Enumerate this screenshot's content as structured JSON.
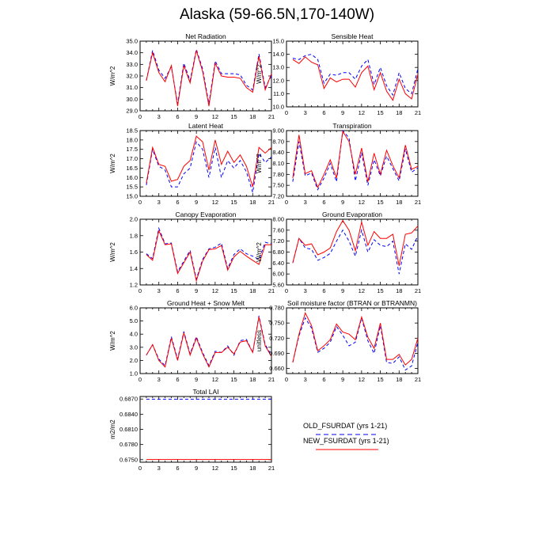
{
  "figure": {
    "title": "Alaska (59-66.5N,170-140W)",
    "legend": [
      {
        "label": "OLD_FSURDAT (yrs 1-21)",
        "color": "#0000ff",
        "dash": true
      },
      {
        "label": "NEW_FSURDAT (yrs 1-21)",
        "color": "#ff0000",
        "dash": false
      }
    ]
  },
  "chart_data": [
    {
      "type": "line",
      "title": "Net Radiation",
      "ylabel": "W/m^2",
      "x": [
        1,
        2,
        3,
        4,
        5,
        6,
        7,
        8,
        9,
        10,
        11,
        12,
        13,
        14,
        15,
        16,
        17,
        18,
        19,
        20,
        21
      ],
      "xlim": [
        0,
        21
      ],
      "xticks": [
        0,
        3,
        6,
        9,
        12,
        15,
        18,
        21
      ],
      "ylim": [
        29.0,
        35.0
      ],
      "yticks": [
        "29.0",
        "30.0",
        "31.0",
        "32.0",
        "33.0",
        "34.0",
        "35.0"
      ],
      "series": [
        {
          "name": "OLD_FSURDAT (yrs 1-21)",
          "color": "#0000ff",
          "dash": true,
          "values": [
            31.6,
            34.2,
            32.5,
            31.8,
            32.8,
            29.6,
            33.1,
            31.6,
            34.3,
            32.6,
            29.6,
            33.3,
            32.2,
            32.2,
            32.2,
            32.1,
            31.2,
            30.8,
            33.9,
            31.0,
            32.0
          ]
        },
        {
          "name": "NEW_FSURDAT (yrs 1-21)",
          "color": "#ff0000",
          "dash": false,
          "values": [
            31.6,
            34.0,
            32.3,
            31.5,
            32.9,
            29.4,
            32.9,
            31.4,
            34.2,
            32.4,
            29.4,
            33.1,
            32.0,
            31.9,
            31.9,
            31.8,
            31.0,
            30.6,
            33.7,
            30.8,
            32.2
          ]
        }
      ]
    },
    {
      "type": "line",
      "title": "Sensible Heat",
      "ylabel": "W/m^2",
      "x": [
        1,
        2,
        3,
        4,
        5,
        6,
        7,
        8,
        9,
        10,
        11,
        12,
        13,
        14,
        15,
        16,
        17,
        18,
        19,
        20,
        21
      ],
      "xlim": [
        0,
        21
      ],
      "xticks": [
        0,
        3,
        6,
        9,
        12,
        15,
        18,
        21
      ],
      "ylim": [
        10.0,
        15.0
      ],
      "yticks": [
        "10.0",
        "11.0",
        "12.0",
        "13.0",
        "14.0",
        "15.0"
      ],
      "series": [
        {
          "name": "OLD_FSURDAT (yrs 1-21)",
          "color": "#0000ff",
          "dash": true,
          "values": [
            13.7,
            13.6,
            13.9,
            14.0,
            13.6,
            11.8,
            12.5,
            12.4,
            12.6,
            12.6,
            12.1,
            13.1,
            13.6,
            11.7,
            13.0,
            11.6,
            10.9,
            12.6,
            11.4,
            11.0,
            12.9
          ]
        },
        {
          "name": "NEW_FSURDAT (yrs 1-21)",
          "color": "#ff0000",
          "dash": false,
          "values": [
            13.6,
            13.3,
            13.8,
            13.4,
            13.2,
            11.4,
            12.2,
            11.9,
            12.1,
            12.1,
            11.5,
            12.6,
            13.1,
            11.3,
            12.6,
            11.2,
            10.5,
            12.1,
            11.0,
            10.6,
            12.5
          ]
        }
      ]
    },
    {
      "type": "line",
      "title": "Latent Heat",
      "ylabel": "W/m^2",
      "x": [
        1,
        2,
        3,
        4,
        5,
        6,
        7,
        8,
        9,
        10,
        11,
        12,
        13,
        14,
        15,
        16,
        17,
        18,
        19,
        20,
        21
      ],
      "xlim": [
        0,
        21
      ],
      "xticks": [
        0,
        3,
        6,
        9,
        12,
        15,
        18,
        21
      ],
      "ylim": [
        15.0,
        18.5
      ],
      "yticks": [
        "15.0",
        "15.5",
        "16.0",
        "16.5",
        "17.0",
        "17.5",
        "18.0",
        "18.5"
      ],
      "series": [
        {
          "name": "OLD_FSURDAT (yrs 1-21)",
          "color": "#0000ff",
          "dash": true,
          "values": [
            15.6,
            17.5,
            16.6,
            16.4,
            15.5,
            15.5,
            16.2,
            16.5,
            17.9,
            17.5,
            16.0,
            17.6,
            16.0,
            16.9,
            16.5,
            16.9,
            16.3,
            15.2,
            17.3,
            16.8,
            17.1
          ]
        },
        {
          "name": "NEW_FSURDAT (yrs 1-21)",
          "color": "#ff0000",
          "dash": false,
          "values": [
            15.7,
            17.6,
            16.7,
            16.6,
            15.8,
            15.9,
            16.6,
            16.9,
            18.2,
            17.9,
            16.4,
            18.0,
            16.7,
            17.4,
            16.8,
            17.2,
            16.6,
            15.5,
            17.6,
            17.3,
            17.6
          ]
        }
      ]
    },
    {
      "type": "line",
      "title": "Transpiration",
      "ylabel": "W/m^2",
      "x": [
        1,
        2,
        3,
        4,
        5,
        6,
        7,
        8,
        9,
        10,
        11,
        12,
        13,
        14,
        15,
        16,
        17,
        18,
        19,
        20,
        21
      ],
      "xlim": [
        0,
        21
      ],
      "xticks": [
        0,
        3,
        6,
        9,
        12,
        15,
        18,
        21
      ],
      "ylim": [
        7.2,
        9.0
      ],
      "yticks": [
        "7.20",
        "7.50",
        "7.80",
        "8.10",
        "8.40",
        "8.70",
        "9.00"
      ],
      "series": [
        {
          "name": "OLD_FSURDAT (yrs 1-21)",
          "color": "#0000ff",
          "dash": true,
          "values": [
            7.6,
            8.7,
            7.76,
            7.84,
            7.38,
            7.7,
            8.1,
            7.6,
            9.0,
            8.8,
            7.62,
            8.4,
            7.5,
            8.2,
            7.76,
            8.3,
            7.96,
            7.62,
            8.5,
            7.86,
            7.98
          ]
        },
        {
          "name": "NEW_FSURDAT (yrs 1-21)",
          "color": "#ff0000",
          "dash": false,
          "values": [
            7.7,
            8.88,
            7.82,
            7.9,
            7.44,
            7.8,
            8.2,
            7.7,
            8.98,
            8.7,
            7.8,
            8.52,
            7.6,
            8.38,
            7.8,
            8.46,
            8.04,
            7.7,
            8.6,
            7.94,
            8.02
          ]
        }
      ]
    },
    {
      "type": "line",
      "title": "Canopy Evaporation",
      "ylabel": "W/m^2",
      "x": [
        1,
        2,
        3,
        4,
        5,
        6,
        7,
        8,
        9,
        10,
        11,
        12,
        13,
        14,
        15,
        16,
        17,
        18,
        19,
        20,
        21
      ],
      "xlim": [
        0,
        21
      ],
      "xticks": [
        0,
        3,
        6,
        9,
        12,
        15,
        18,
        21
      ],
      "ylim": [
        1.2,
        2.0
      ],
      "yticks": [
        "1.2",
        "1.4",
        "1.6",
        "1.8",
        "2.0"
      ],
      "series": [
        {
          "name": "OLD_FSURDAT (yrs 1-21)",
          "color": "#0000ff",
          "dash": true,
          "values": [
            1.58,
            1.52,
            1.89,
            1.7,
            1.71,
            1.36,
            1.49,
            1.62,
            1.27,
            1.51,
            1.64,
            1.66,
            1.71,
            1.4,
            1.57,
            1.64,
            1.58,
            1.55,
            1.51,
            1.72,
            1.7
          ]
        },
        {
          "name": "NEW_FSURDAT (yrs 1-21)",
          "color": "#ff0000",
          "dash": false,
          "values": [
            1.57,
            1.5,
            1.86,
            1.69,
            1.7,
            1.34,
            1.47,
            1.6,
            1.25,
            1.49,
            1.63,
            1.64,
            1.68,
            1.38,
            1.54,
            1.61,
            1.55,
            1.5,
            1.45,
            1.69,
            1.69
          ]
        }
      ]
    },
    {
      "type": "line",
      "title": "Ground Evaporation",
      "ylabel": "W/m^2",
      "x": [
        1,
        2,
        3,
        4,
        5,
        6,
        7,
        8,
        9,
        10,
        11,
        12,
        13,
        14,
        15,
        16,
        17,
        18,
        19,
        20,
        21
      ],
      "xlim": [
        0,
        21
      ],
      "xticks": [
        0,
        3,
        6,
        9,
        12,
        15,
        18,
        21
      ],
      "ylim": [
        5.6,
        8.0
      ],
      "yticks": [
        "5.60",
        "6.00",
        "6.40",
        "6.80",
        "7.20",
        "7.60",
        "8.00"
      ],
      "series": [
        {
          "name": "OLD_FSURDAT (yrs 1-21)",
          "color": "#0000ff",
          "dash": true,
          "values": [
            6.4,
            7.3,
            6.95,
            6.9,
            6.5,
            6.6,
            6.75,
            7.2,
            7.6,
            7.2,
            6.65,
            7.6,
            6.8,
            7.25,
            7.05,
            7.0,
            7.2,
            6.0,
            7.1,
            6.9,
            7.4
          ]
        },
        {
          "name": "NEW_FSURDAT (yrs 1-21)",
          "color": "#ff0000",
          "dash": false,
          "values": [
            6.4,
            7.3,
            7.05,
            7.1,
            6.7,
            6.8,
            6.95,
            7.55,
            7.95,
            7.6,
            6.85,
            7.9,
            7.05,
            7.55,
            7.3,
            7.3,
            7.45,
            6.3,
            7.45,
            7.5,
            7.75
          ]
        }
      ]
    },
    {
      "type": "line",
      "title": "Ground Heat + Snow Melt",
      "ylabel": "W/m^2",
      "x": [
        1,
        2,
        3,
        4,
        5,
        6,
        7,
        8,
        9,
        10,
        11,
        12,
        13,
        14,
        15,
        16,
        17,
        18,
        19,
        20,
        21
      ],
      "xlim": [
        0,
        21
      ],
      "xticks": [
        0,
        3,
        6,
        9,
        12,
        15,
        18,
        21
      ],
      "ylim": [
        1.0,
        6.0
      ],
      "yticks": [
        "1.0",
        "2.0",
        "3.0",
        "4.0",
        "5.0",
        "6.0"
      ],
      "series": [
        {
          "name": "OLD_FSURDAT (yrs 1-21)",
          "color": "#0000ff",
          "dash": true,
          "values": [
            2.4,
            3.2,
            2.1,
            1.6,
            3.8,
            2.1,
            4.2,
            2.5,
            3.8,
            2.6,
            1.6,
            2.7,
            2.6,
            3.1,
            2.4,
            3.5,
            3.6,
            2.6,
            5.4,
            3.2,
            2.4
          ]
        },
        {
          "name": "NEW_FSURDAT (yrs 1-21)",
          "color": "#ff0000",
          "dash": false,
          "values": [
            2.4,
            3.2,
            2.0,
            1.5,
            3.7,
            2.0,
            4.1,
            2.4,
            3.7,
            2.5,
            1.5,
            2.6,
            2.6,
            3.0,
            2.5,
            3.4,
            3.5,
            2.6,
            5.3,
            3.1,
            2.3
          ]
        }
      ]
    },
    {
      "type": "line",
      "title": "Soil moisture factor (BTRAN or BTRANMN)",
      "ylabel": "unitless",
      "x": [
        1,
        2,
        3,
        4,
        5,
        6,
        7,
        8,
        9,
        10,
        11,
        12,
        13,
        14,
        15,
        16,
        17,
        18,
        19,
        20,
        21
      ],
      "xlim": [
        0,
        21
      ],
      "xticks": [
        0,
        3,
        6,
        9,
        12,
        15,
        18,
        21
      ],
      "ylim": [
        0.65,
        0.78
      ],
      "yticks": [
        "0.660",
        "0.690",
        "0.720",
        "0.750",
        "0.780"
      ],
      "series": [
        {
          "name": "OLD_FSURDAT (yrs 1-21)",
          "color": "#0000ff",
          "dash": true,
          "values": [
            0.672,
            0.725,
            0.76,
            0.74,
            0.692,
            0.7,
            0.712,
            0.743,
            0.726,
            0.705,
            0.712,
            0.76,
            0.715,
            0.69,
            0.745,
            0.672,
            0.67,
            0.683,
            0.657,
            0.665,
            0.712
          ]
        },
        {
          "name": "NEW_FSURDAT (yrs 1-21)",
          "color": "#ff0000",
          "dash": false,
          "values": [
            0.672,
            0.728,
            0.77,
            0.745,
            0.695,
            0.705,
            0.717,
            0.748,
            0.732,
            0.728,
            0.717,
            0.762,
            0.722,
            0.7,
            0.75,
            0.678,
            0.678,
            0.688,
            0.667,
            0.678,
            0.72
          ]
        }
      ]
    },
    {
      "type": "line",
      "title": "Total LAI",
      "ylabel": "m2/m2",
      "x": [
        1,
        2,
        3,
        4,
        5,
        6,
        7,
        8,
        9,
        10,
        11,
        12,
        13,
        14,
        15,
        16,
        17,
        18,
        19,
        20,
        21
      ],
      "xlim": [
        0,
        21
      ],
      "xticks": [
        0,
        3,
        6,
        9,
        12,
        15,
        18,
        21
      ],
      "ylim": [
        0.6745,
        0.6875
      ],
      "yticks": [
        "0.6750",
        "0.6780",
        "0.6810",
        "0.6840",
        "0.6870"
      ],
      "series": [
        {
          "name": "OLD_FSURDAT (yrs 1-21)",
          "color": "#0000ff",
          "dash": true,
          "values": [
            0.68697,
            0.68697,
            0.68697,
            0.68697,
            0.68697,
            0.68697,
            0.68697,
            0.68697,
            0.68697,
            0.68697,
            0.68697,
            0.68697,
            0.68697,
            0.68697,
            0.68697,
            0.68697,
            0.68697,
            0.68697,
            0.68697,
            0.68697,
            0.68697
          ]
        },
        {
          "name": "NEW_FSURDAT (yrs 1-21)",
          "color": "#ff0000",
          "dash": false,
          "values": [
            0.67503,
            0.67503,
            0.67503,
            0.67503,
            0.67503,
            0.67503,
            0.67503,
            0.67503,
            0.67503,
            0.67503,
            0.67503,
            0.67503,
            0.67503,
            0.67503,
            0.67503,
            0.67503,
            0.67503,
            0.67503,
            0.67503,
            0.67503,
            0.67503
          ]
        }
      ]
    }
  ]
}
